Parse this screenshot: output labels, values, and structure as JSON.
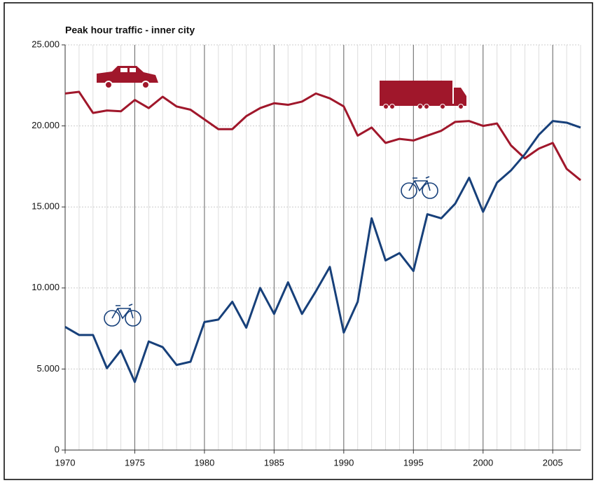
{
  "chart_data": {
    "type": "line",
    "title": "Peak hour traffic - inner city",
    "x": [
      1970,
      1971,
      1972,
      1973,
      1974,
      1975,
      1976,
      1977,
      1978,
      1979,
      1980,
      1981,
      1982,
      1983,
      1984,
      1985,
      1986,
      1987,
      1988,
      1989,
      1990,
      1991,
      1992,
      1993,
      1994,
      1995,
      1996,
      1997,
      1998,
      1999,
      2000,
      2001,
      2002,
      2003,
      2004,
      2005,
      2006,
      2007
    ],
    "series": [
      {
        "color": "#a0172b",
        "values": [
          22000,
          22100,
          20800,
          20950,
          20900,
          21600,
          21100,
          21800,
          21200,
          21000,
          20400,
          19800,
          19800,
          20600,
          21100,
          21400,
          21300,
          21500,
          22000,
          21700,
          21200,
          19400,
          19900,
          18950,
          19200,
          19100,
          19400,
          19700,
          20250,
          20300,
          20000,
          20150,
          18800,
          18000,
          18600,
          18950,
          17350,
          16650
        ]
      },
      {
        "color": "#17407a",
        "values": [
          7600,
          7100,
          7100,
          5050,
          6150,
          4200,
          6700,
          6350,
          5250,
          5450,
          7900,
          8050,
          9150,
          7550,
          10000,
          8400,
          10350,
          8400,
          9800,
          11300,
          7250,
          9150,
          14300,
          11700,
          12150,
          11050,
          14550,
          14300,
          15200,
          16800,
          14700,
          16500,
          17250,
          18250,
          19450,
          20300,
          20200,
          19900
        ]
      }
    ],
    "xlim": [
      1970,
      2007
    ],
    "xticks": [
      1970,
      1975,
      1980,
      1985,
      1990,
      1995,
      2000,
      2005
    ],
    "ylim": [
      0,
      25000
    ],
    "yticks": [
      0,
      {
        "value": 5000,
        "label": "5.000"
      },
      {
        "value": 10000,
        "label": "10.000"
      },
      {
        "value": 15000,
        "label": "15.000"
      },
      {
        "value": 20000,
        "label": "20.000"
      },
      {
        "value": 25000,
        "label": "25.000"
      }
    ],
    "grid": true
  }
}
